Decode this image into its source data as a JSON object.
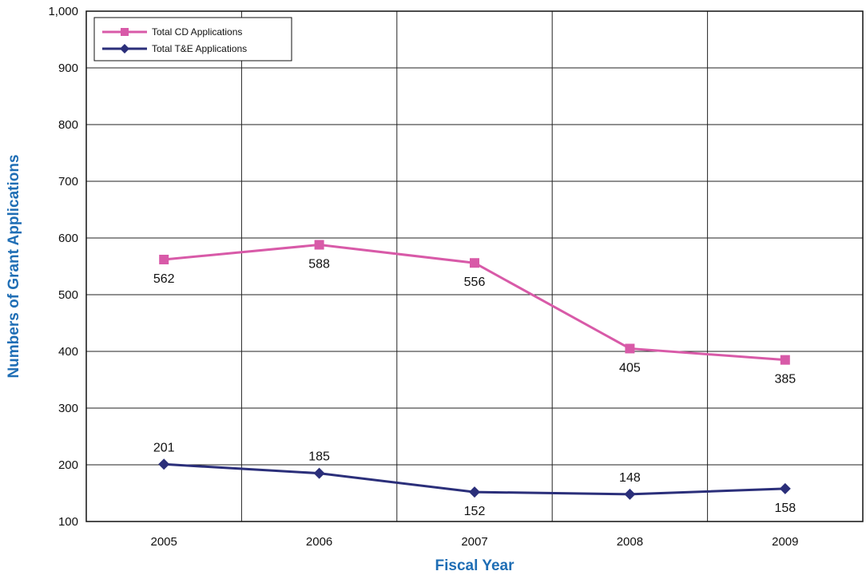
{
  "chart_data": {
    "type": "line",
    "title": "",
    "xlabel": "Fiscal Year",
    "ylabel": "Numbers of Grant Applications",
    "categories": [
      "2005",
      "2006",
      "2007",
      "2008",
      "2009"
    ],
    "ylim": [
      100,
      1000
    ],
    "yticks": [
      100,
      200,
      300,
      400,
      500,
      600,
      700,
      800,
      900,
      1000
    ],
    "ytick_labels": [
      "100",
      "200",
      "300",
      "400",
      "500",
      "600",
      "700",
      "800",
      "900",
      "1,000"
    ],
    "grid": true,
    "legend_position": "top-left",
    "series": [
      {
        "name": "Total CD Applications",
        "color": "#d85aa8",
        "marker": "square",
        "values": [
          562,
          588,
          556,
          405,
          385
        ],
        "labels": [
          "562",
          "588",
          "556",
          "405",
          "385"
        ],
        "label_position": "below"
      },
      {
        "name": "Total T&E Applications",
        "color": "#2b2f7a",
        "marker": "diamond",
        "values": [
          201,
          185,
          152,
          148,
          158
        ],
        "labels": [
          "201",
          "185",
          "152",
          "148",
          "158"
        ],
        "label_position": [
          "above",
          "above",
          "below",
          "above",
          "below"
        ]
      }
    ]
  }
}
